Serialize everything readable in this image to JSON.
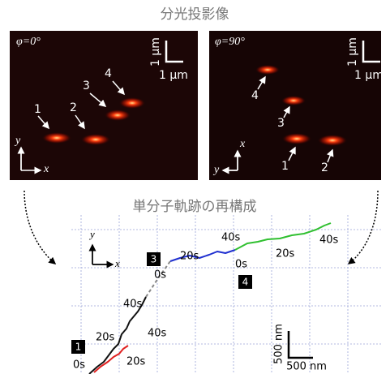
{
  "title": "分光投影像",
  "panels": [
    {
      "angle": "φ=0°",
      "scale_v": "1 μm",
      "scale_h": "1 μm",
      "spots": [
        "1",
        "2",
        "3",
        "4"
      ],
      "axis_y": "y",
      "axis_x": "x"
    },
    {
      "angle": "φ=90°",
      "scale_v": "1 μm",
      "scale_h": "1 μm",
      "spots": [
        "4",
        "3",
        "1",
        "2"
      ],
      "axis_y": "x",
      "axis_x": "y"
    }
  ],
  "reconstruction": {
    "title": "単分子軌跡の再構成",
    "axis_y": "y",
    "axis_x": "x",
    "markers": [
      "1",
      "3",
      "4"
    ],
    "time_labels": [
      "0s",
      "20s",
      "20s",
      "40s",
      "40s",
      "0s",
      "20s",
      "40s",
      "0s",
      "20s",
      "40s"
    ],
    "scale_v": "500 nm",
    "scale_h": "500 nm"
  }
}
